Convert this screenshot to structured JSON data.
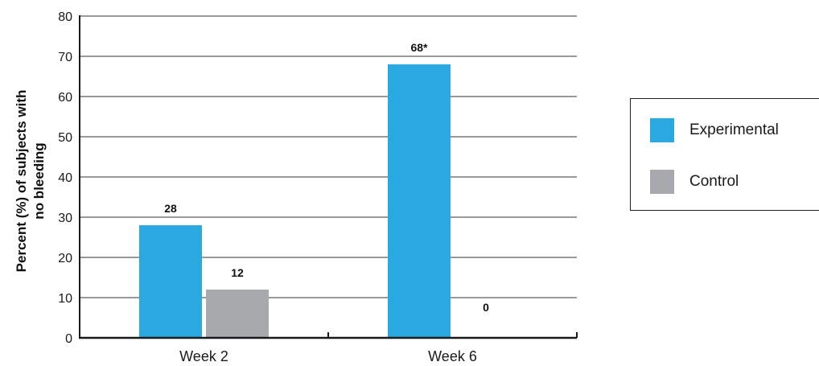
{
  "chart_data": {
    "type": "bar",
    "categories": [
      "Week 2",
      "Week 6"
    ],
    "series": [
      {
        "name": "Experimental",
        "color": "#29a9e0",
        "values": [
          28,
          68
        ],
        "labels": [
          "28",
          "68*"
        ]
      },
      {
        "name": "Control",
        "color": "#a7a9ac",
        "values": [
          12,
          0
        ],
        "labels": [
          "12",
          "0"
        ]
      }
    ],
    "ylabel_lines": [
      "Percent (%) of subjects with",
      "no bleeding"
    ],
    "ylim": [
      0,
      80
    ],
    "yticks": [
      0,
      10,
      20,
      30,
      40,
      50,
      60,
      70,
      80
    ],
    "grid": true,
    "legend_position": "right"
  }
}
